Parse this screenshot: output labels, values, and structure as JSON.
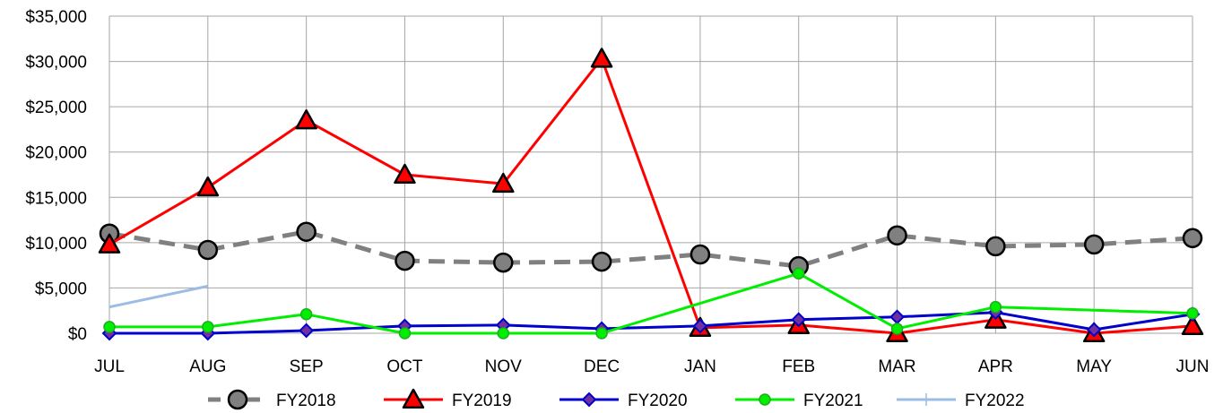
{
  "chart_data": {
    "type": "line",
    "title": "",
    "xlabel": "",
    "ylabel": "",
    "categories": [
      "JUL",
      "AUG",
      "SEP",
      "OCT",
      "NOV",
      "DEC",
      "JAN",
      "FEB",
      "MAR",
      "APR",
      "MAY",
      "JUN"
    ],
    "ylim": [
      0,
      35000
    ],
    "yticks": [
      0,
      5000,
      10000,
      15000,
      20000,
      25000,
      30000,
      35000
    ],
    "ytick_labels": [
      "$0",
      "$5,000",
      "$10,000",
      "$15,000",
      "$20,000",
      "$25,000",
      "$30,000",
      "$35,000"
    ],
    "grid": true,
    "legend_position": "bottom",
    "series": [
      {
        "name": "FY2018",
        "color": "#808080",
        "marker": "circle",
        "dashed": true,
        "values": [
          11000,
          9200,
          11200,
          8000,
          7800,
          7900,
          8700,
          7400,
          10800,
          9600,
          9800,
          10500
        ]
      },
      {
        "name": "FY2019",
        "color": "#ff0000",
        "marker": "triangle",
        "dashed": false,
        "values": [
          9800,
          16100,
          23500,
          17500,
          16500,
          30300,
          600,
          900,
          0,
          1500,
          0,
          800
        ]
      },
      {
        "name": "FY2020",
        "color": "#0000cc",
        "marker": "diamond",
        "dashed": false,
        "values": [
          0,
          0,
          300,
          800,
          900,
          500,
          800,
          1500,
          1800,
          2300,
          400,
          2100
        ]
      },
      {
        "name": "FY2021",
        "color": "#00ee00",
        "marker": "dot",
        "dashed": false,
        "values": [
          700,
          700,
          2100,
          0,
          0,
          0,
          null,
          6600,
          500,
          2900,
          null,
          2200
        ]
      },
      {
        "name": "FY2022",
        "color": "#9dbce4",
        "marker": "none",
        "dashed": false,
        "values": [
          2900,
          5200,
          null,
          null,
          null,
          null,
          null,
          null,
          null,
          null,
          null,
          null
        ]
      }
    ]
  }
}
